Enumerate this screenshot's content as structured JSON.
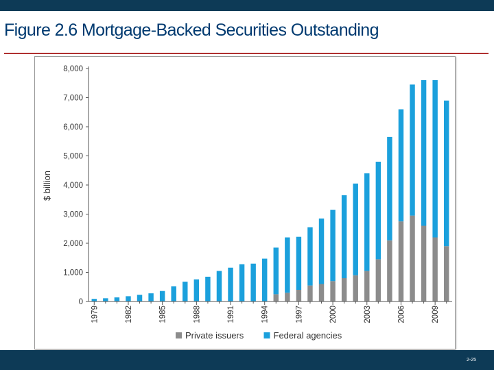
{
  "slide": {
    "title": "Figure 2.6 Mortgage-Backed Securities Outstanding",
    "number": "2-25"
  },
  "colors": {
    "header_bar": "#0d3a56",
    "title_text": "#003a70",
    "title_rule": "#b03030",
    "private": "#8c8c8c",
    "federal": "#1ba0dc"
  },
  "chart_data": {
    "type": "bar",
    "stacked": true,
    "ylabel": "$ billion",
    "xlabel": "",
    "ylim": [
      0,
      8000
    ],
    "yticks": [
      0,
      1000,
      2000,
      3000,
      4000,
      5000,
      6000,
      7000,
      8000
    ],
    "ytick_labels": [
      "0",
      "1,000",
      "2,000",
      "3,000",
      "4,000",
      "5,000",
      "6,000",
      "7,000",
      "8,000"
    ],
    "categories": [
      "1979",
      "1980",
      "1981",
      "1982",
      "1983",
      "1984",
      "1985",
      "1986",
      "1987",
      "1988",
      "1989",
      "1990",
      "1991",
      "1992",
      "1993",
      "1994",
      "1995",
      "1996",
      "1997",
      "1998",
      "1999",
      "2000",
      "2001",
      "2002",
      "2003",
      "2004",
      "2005",
      "2006",
      "2007",
      "2008",
      "2009",
      "2010"
    ],
    "xtick_labels": [
      "1979",
      "1982",
      "1985",
      "1988",
      "1991",
      "1994",
      "1997",
      "2000",
      "2003",
      "2006",
      "2009"
    ],
    "legend_position": "bottom",
    "grid": false,
    "series": [
      {
        "name": "Private issuers",
        "color": "#8c8c8c",
        "values": [
          0,
          0,
          0,
          0,
          0,
          0,
          0,
          0,
          0,
          0,
          0,
          0,
          0,
          0,
          0,
          0,
          250,
          300,
          400,
          550,
          600,
          700,
          800,
          900,
          1050,
          1450,
          2100,
          2750,
          2950,
          2600,
          2200,
          1900
        ]
      },
      {
        "name": "Federal agencies",
        "color": "#1ba0dc",
        "values": [
          90,
          110,
          140,
          180,
          230,
          280,
          360,
          520,
          680,
          760,
          850,
          1050,
          1160,
          1280,
          1300,
          1470,
          1600,
          1900,
          1820,
          2000,
          2250,
          2450,
          2850,
          3150,
          3350,
          3350,
          3550,
          3850,
          4500,
          5000,
          5400,
          5000
        ]
      }
    ]
  }
}
